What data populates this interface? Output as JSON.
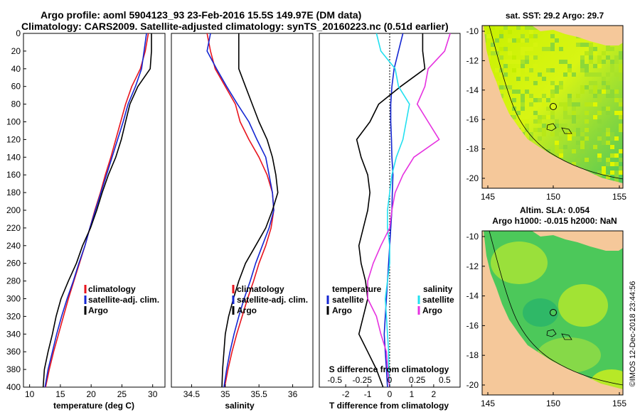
{
  "header": {
    "title_line1": "Argo profile: aoml 5904123_93 23-Feb-2016 15.5S 149.97E (DM data)",
    "title_line2": "Climatology: CARS2009. Satellite-adjusted climatology: synTS_20160223.nc (0.51d earlier)"
  },
  "colors": {
    "climatology": "#e8141e",
    "satellite": "#1426d2",
    "argo": "#000000",
    "sal_sat": "#22e0f0",
    "sal_argo": "#e632e0",
    "land": "#f5c89a"
  },
  "chart_data": [
    {
      "type": "line",
      "id": "temperature",
      "xlabel": "temperature (deg C)",
      "xlim": [
        9,
        32
      ],
      "ylim": [
        0,
        400
      ],
      "xticks": [
        10,
        15,
        20,
        25,
        30
      ],
      "yticks": [
        0,
        20,
        40,
        60,
        80,
        100,
        120,
        140,
        160,
        180,
        200,
        220,
        240,
        260,
        280,
        300,
        320,
        340,
        360,
        380,
        400
      ],
      "depth": [
        0,
        20,
        40,
        60,
        80,
        100,
        120,
        140,
        160,
        180,
        200,
        220,
        240,
        260,
        280,
        300,
        320,
        340,
        360,
        380,
        400
      ],
      "legend": [
        "climatology",
        "satellite-adj. clim.",
        "Argo"
      ],
      "series": [
        {
          "name": "climatology",
          "values": [
            29.3,
            28.8,
            28.0,
            26.6,
            25.6,
            24.8,
            24.0,
            23.2,
            22.3,
            21.5,
            20.6,
            19.8,
            19.0,
            18.1,
            17.2,
            16.3,
            15.5,
            14.7,
            13.9,
            13.2,
            12.6
          ]
        },
        {
          "name": "satellite-adj. clim.",
          "values": [
            29.0,
            28.6,
            28.2,
            27.2,
            26.0,
            25.2,
            24.3,
            23.4,
            22.5,
            21.6,
            20.7,
            19.8,
            19.0,
            18.0,
            17.1,
            16.1,
            15.2,
            14.4,
            13.7,
            13.0,
            12.5
          ]
        },
        {
          "name": "Argo",
          "values": [
            29.8,
            29.8,
            29.6,
            27.6,
            26.3,
            25.6,
            24.9,
            24.0,
            22.8,
            21.8,
            20.9,
            19.9,
            18.6,
            17.6,
            16.3,
            15.1,
            14.3,
            13.7,
            13.0,
            12.4,
            12.2
          ]
        }
      ]
    },
    {
      "type": "line",
      "id": "salinity",
      "xlabel": "salinity",
      "xlim": [
        34.2,
        36.3
      ],
      "ylim": [
        0,
        400
      ],
      "xticks": [
        34.5,
        35,
        35.5,
        36
      ],
      "xtick_labels": [
        "34.5",
        "35",
        "35.5",
        "36"
      ],
      "depth": [
        0,
        20,
        40,
        60,
        80,
        100,
        120,
        140,
        160,
        180,
        200,
        220,
        240,
        260,
        280,
        300,
        320,
        340,
        360,
        380,
        400
      ],
      "legend": [
        "climatology",
        "satellite-adj. clim.",
        "Argo"
      ],
      "series": [
        {
          "name": "climatology",
          "values": [
            34.73,
            34.78,
            34.85,
            35.0,
            35.15,
            35.22,
            35.35,
            35.5,
            35.62,
            35.7,
            35.72,
            35.68,
            35.6,
            35.5,
            35.42,
            35.33,
            35.25,
            35.17,
            35.1,
            35.04,
            34.99
          ]
        },
        {
          "name": "satellite-adj. clim.",
          "values": [
            34.78,
            34.73,
            34.87,
            35.02,
            35.18,
            35.35,
            35.47,
            35.6,
            35.65,
            35.7,
            35.72,
            35.65,
            35.55,
            35.45,
            35.37,
            35.28,
            35.2,
            35.13,
            35.07,
            35.02,
            34.98
          ]
        },
        {
          "name": "Argo",
          "values": [
            35.2,
            35.2,
            35.2,
            35.3,
            35.4,
            35.5,
            35.62,
            35.7,
            35.75,
            35.78,
            35.7,
            35.6,
            35.45,
            35.3,
            35.2,
            35.12,
            35.05,
            35.0,
            34.98,
            34.96,
            34.95
          ]
        }
      ]
    },
    {
      "type": "line",
      "id": "difference",
      "xlabel": "T difference from climatology",
      "xlabel_top": "S difference from climatology",
      "xlim": [
        -3.2,
        3.2
      ],
      "ylim": [
        0,
        400
      ],
      "xticks": [
        -2,
        -1,
        0,
        1,
        2
      ],
      "sticks": [
        -0.5,
        -0.25,
        0,
        0.25,
        0.5
      ],
      "stick_labels": [
        "-0.5",
        "-0.25",
        "0",
        "0.25",
        "0.5"
      ],
      "depth": [
        0,
        20,
        40,
        60,
        80,
        100,
        120,
        140,
        160,
        180,
        200,
        220,
        240,
        260,
        280,
        300,
        320,
        340,
        360,
        380,
        400
      ],
      "legend_temperature": {
        "heading": "temperature",
        "items": [
          "satellite",
          "Argo"
        ]
      },
      "legend_salinity": {
        "heading": "salinity",
        "items": [
          "satellite",
          "Argo"
        ]
      },
      "series": [
        {
          "name": "T satellite",
          "values": [
            0.6,
            0.4,
            0.2,
            0.1,
            0.05,
            0.05,
            0.08,
            0.1,
            0.15,
            0.12,
            0.1,
            0.05,
            0.0,
            -0.05,
            -0.1,
            -0.15,
            -0.2,
            -0.25,
            -0.2,
            -0.15,
            -0.1
          ]
        },
        {
          "name": "T Argo",
          "values": [
            1.5,
            1.5,
            1.6,
            0.5,
            -0.5,
            -0.9,
            -1.5,
            -1.3,
            -1.0,
            -0.9,
            -1.0,
            -1.2,
            -1.4,
            -1.3,
            -1.1,
            -1.0,
            -1.2,
            -1.4,
            -1.0,
            -0.6,
            -0.3
          ]
        },
        {
          "name": "S satellite",
          "values": [
            -0.12,
            -0.08,
            0.05,
            0.08,
            0.18,
            0.15,
            0.12,
            0.06,
            0.02,
            0.0,
            -0.02,
            -0.02,
            0.0,
            0.0,
            -0.02,
            -0.04,
            -0.03,
            -0.02,
            -0.01,
            -0.01,
            0.0
          ]
        },
        {
          "name": "S Argo",
          "values": [
            0.55,
            0.5,
            0.35,
            0.32,
            0.25,
            0.35,
            0.45,
            0.22,
            0.12,
            0.05,
            0.02,
            0.0,
            -0.08,
            -0.15,
            -0.2,
            -0.2,
            -0.12,
            -0.08,
            -0.03,
            -0.02,
            0.0
          ]
        }
      ]
    }
  ],
  "maps": {
    "sst": {
      "title": "sat. SST: 29.2 Argo: 29.7",
      "xticks": [
        "145",
        "150",
        "155"
      ],
      "yticks": [
        "-10",
        "-12",
        "-14",
        "-16",
        "-18",
        "-20"
      ]
    },
    "sla": {
      "title_line1": "Altim. SLA: 0.054",
      "title_line2": "Argo h1000: -0.015 h2000: NaN",
      "xticks": [
        "145",
        "150",
        "155"
      ],
      "yticks": [
        "-10",
        "-12",
        "-14",
        "-16",
        "-18",
        "-20"
      ]
    }
  },
  "footer": {
    "stamp": "©IMOS 12-Dec-2018 23:44:56"
  }
}
